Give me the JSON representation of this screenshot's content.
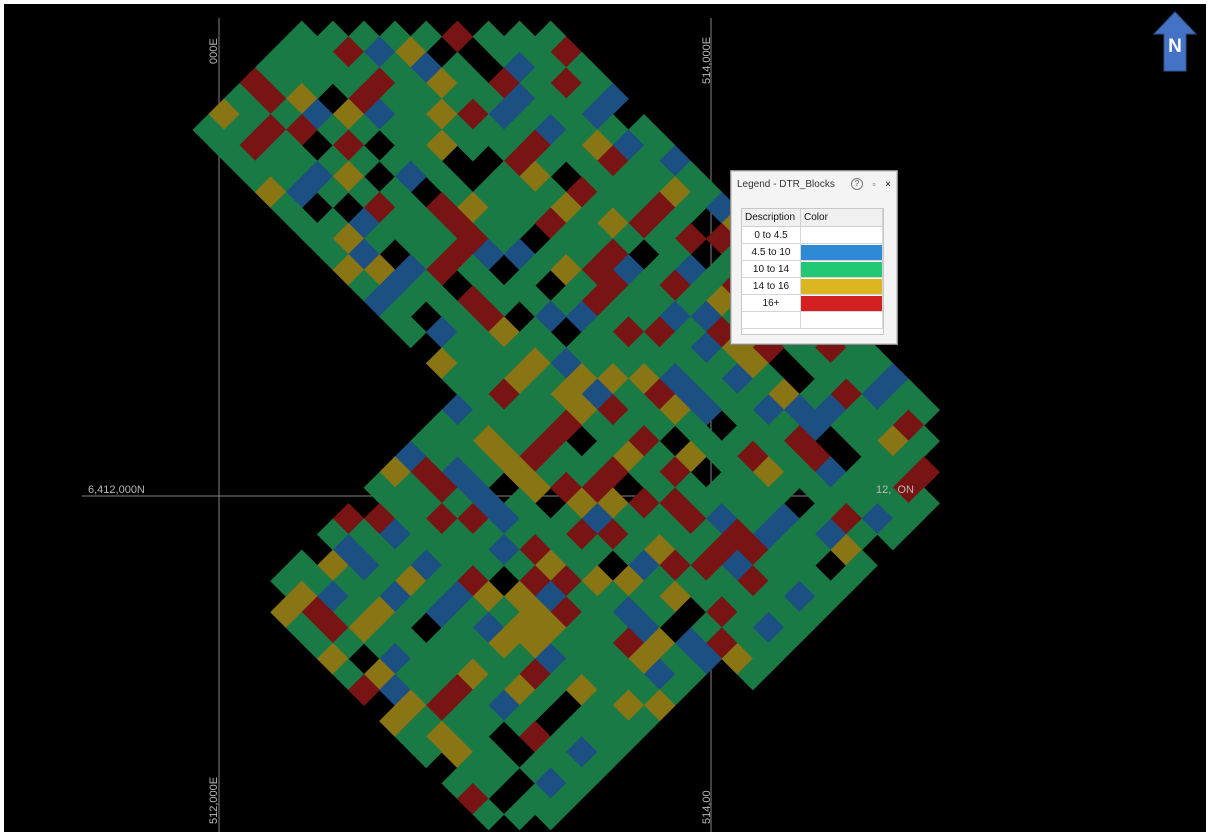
{
  "map": {
    "grid_labels": {
      "easting_left_top": "000E",
      "easting_right_top": "514,000E",
      "easting_left_bottom": "512,000E",
      "easting_right_bottom": "514,00",
      "northing_left": "6,412,000N",
      "northing_right": "12,  ON"
    },
    "north_arrow": {
      "label": "N",
      "color": "#4472c4"
    },
    "block_colors": {
      "green": "#1a7a45",
      "blue": "#1c4f82",
      "yellow": "#8a7514",
      "red": "#781414"
    }
  },
  "legend": {
    "title": "Legend - DTR_Blocks",
    "buttons": {
      "help": "?",
      "float": "▫",
      "close": "×"
    },
    "columns": [
      "Description",
      "Color"
    ],
    "rows": [
      {
        "description": "0 to 4.5",
        "color": "#ffffff"
      },
      {
        "description": "4.5 to 10",
        "color": "#2f8ad6"
      },
      {
        "description": "10 to 14",
        "color": "#23c875"
      },
      {
        "description": "14 to 16",
        "color": "#dcb620"
      },
      {
        "description": "16+",
        "color": "#d42020"
      }
    ]
  }
}
